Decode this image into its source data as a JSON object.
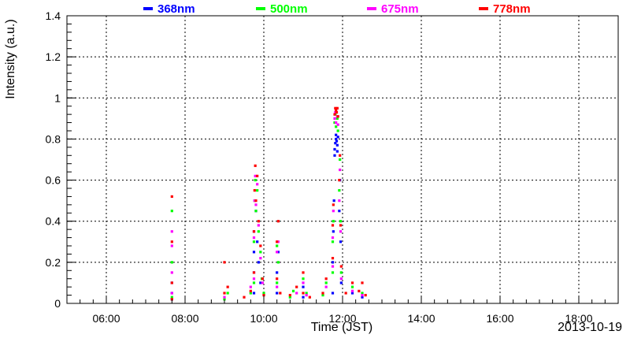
{
  "chart_data": {
    "type": "scatter",
    "title": "",
    "xlabel": "Time (JST)",
    "ylabel": "Intensity (a.u.)",
    "date_label": "2013-10-19",
    "xlim": [
      "05:00",
      "19:00"
    ],
    "ylim": [
      0,
      1.4
    ],
    "x_ticks": [
      "06:00",
      "08:00",
      "10:00",
      "12:00",
      "14:00",
      "16:00",
      "18:00"
    ],
    "y_ticks": [
      "0",
      "0.2",
      "0.4",
      "0.6",
      "0.8",
      "1",
      "1.2",
      "1.4"
    ],
    "grid": true,
    "legend_position": "top",
    "series": [
      {
        "name": "368nm",
        "color": "#0000ff",
        "points": [
          [
            "07:40",
            0.02
          ],
          [
            "07:40",
            0.05
          ],
          [
            "07:40",
            0.1
          ],
          [
            "09:45",
            0.05
          ],
          [
            "09:45",
            0.15
          ],
          [
            "09:45",
            0.25
          ],
          [
            "09:45",
            0.35
          ],
          [
            "09:48",
            0.45
          ],
          [
            "09:50",
            0.3
          ],
          [
            "09:52",
            0.2
          ],
          [
            "09:55",
            0.1
          ],
          [
            "10:20",
            0.05
          ],
          [
            "10:20",
            0.15
          ],
          [
            "10:22",
            0.25
          ],
          [
            "11:00",
            0.03
          ],
          [
            "11:00",
            0.08
          ],
          [
            "11:45",
            0.05
          ],
          [
            "11:45",
            0.2
          ],
          [
            "11:46",
            0.35
          ],
          [
            "11:47",
            0.5
          ],
          [
            "11:48",
            0.72
          ],
          [
            "11:48",
            0.75
          ],
          [
            "11:49",
            0.78
          ],
          [
            "11:50",
            0.8
          ],
          [
            "11:50",
            0.82
          ],
          [
            "11:51",
            0.79
          ],
          [
            "11:52",
            0.77
          ],
          [
            "11:52",
            0.74
          ],
          [
            "11:53",
            0.81
          ],
          [
            "11:55",
            0.45
          ],
          [
            "11:56",
            0.6
          ],
          [
            "11:57",
            0.3
          ],
          [
            "11:58",
            0.1
          ],
          [
            "12:15",
            0.05
          ],
          [
            "12:30",
            0.03
          ]
        ]
      },
      {
        "name": "500nm",
        "color": "#00ff00",
        "points": [
          [
            "07:40",
            0.03
          ],
          [
            "07:40",
            0.2
          ],
          [
            "07:40",
            0.45
          ],
          [
            "09:00",
            0.02
          ],
          [
            "09:05",
            0.05
          ],
          [
            "09:40",
            0.05
          ],
          [
            "09:45",
            0.1
          ],
          [
            "09:45",
            0.3
          ],
          [
            "09:46",
            0.5
          ],
          [
            "09:47",
            0.6
          ],
          [
            "09:48",
            0.45
          ],
          [
            "09:50",
            0.55
          ],
          [
            "09:52",
            0.35
          ],
          [
            "09:55",
            0.25
          ],
          [
            "09:57",
            0.12
          ],
          [
            "10:00",
            0.05
          ],
          [
            "10:20",
            0.1
          ],
          [
            "10:20",
            0.28
          ],
          [
            "10:22",
            0.2
          ],
          [
            "10:40",
            0.03
          ],
          [
            "10:45",
            0.06
          ],
          [
            "11:00",
            0.12
          ],
          [
            "11:05",
            0.05
          ],
          [
            "11:30",
            0.04
          ],
          [
            "11:35",
            0.1
          ],
          [
            "11:45",
            0.15
          ],
          [
            "11:45",
            0.3
          ],
          [
            "11:46",
            0.4
          ],
          [
            "11:48",
            0.88
          ],
          [
            "11:49",
            0.92
          ],
          [
            "11:50",
            0.86
          ],
          [
            "11:52",
            0.9
          ],
          [
            "11:53",
            0.84
          ],
          [
            "11:55",
            0.55
          ],
          [
            "11:56",
            0.7
          ],
          [
            "11:57",
            0.4
          ],
          [
            "11:58",
            0.15
          ],
          [
            "12:15",
            0.08
          ],
          [
            "12:30",
            0.05
          ]
        ]
      },
      {
        "name": "675nm",
        "color": "#ff00ff",
        "points": [
          [
            "07:40",
            0.05
          ],
          [
            "07:40",
            0.15
          ],
          [
            "07:40",
            0.28
          ],
          [
            "07:40",
            0.35
          ],
          [
            "09:00",
            0.03
          ],
          [
            "09:40",
            0.08
          ],
          [
            "09:45",
            0.12
          ],
          [
            "09:45",
            0.32
          ],
          [
            "09:46",
            0.5
          ],
          [
            "09:47",
            0.62
          ],
          [
            "09:48",
            0.48
          ],
          [
            "09:50",
            0.58
          ],
          [
            "09:52",
            0.38
          ],
          [
            "09:55",
            0.22
          ],
          [
            "09:58",
            0.1
          ],
          [
            "10:20",
            0.08
          ],
          [
            "10:20",
            0.25
          ],
          [
            "10:22",
            0.3
          ],
          [
            "10:50",
            0.05
          ],
          [
            "11:00",
            0.1
          ],
          [
            "11:05",
            0.04
          ],
          [
            "11:35",
            0.08
          ],
          [
            "11:45",
            0.18
          ],
          [
            "11:45",
            0.32
          ],
          [
            "11:46",
            0.45
          ],
          [
            "11:48",
            0.9
          ],
          [
            "11:49",
            0.93
          ],
          [
            "11:50",
            0.88
          ],
          [
            "11:52",
            0.91
          ],
          [
            "11:53",
            0.87
          ],
          [
            "11:55",
            0.5
          ],
          [
            "11:56",
            0.65
          ],
          [
            "11:57",
            0.35
          ],
          [
            "11:58",
            0.12
          ],
          [
            "12:15",
            0.06
          ],
          [
            "12:30",
            0.04
          ]
        ]
      },
      {
        "name": "778nm",
        "color": "#ff0000",
        "points": [
          [
            "07:40",
            0.02
          ],
          [
            "07:40",
            0.1
          ],
          [
            "07:40",
            0.3
          ],
          [
            "07:40",
            0.52
          ],
          [
            "09:00",
            0.05
          ],
          [
            "09:00",
            0.2
          ],
          [
            "09:05",
            0.08
          ],
          [
            "09:30",
            0.03
          ],
          [
            "09:40",
            0.06
          ],
          [
            "09:45",
            0.15
          ],
          [
            "09:45",
            0.35
          ],
          [
            "09:46",
            0.55
          ],
          [
            "09:47",
            0.67
          ],
          [
            "09:48",
            0.5
          ],
          [
            "09:50",
            0.62
          ],
          [
            "09:52",
            0.4
          ],
          [
            "09:55",
            0.28
          ],
          [
            "09:58",
            0.12
          ],
          [
            "10:00",
            0.04
          ],
          [
            "10:20",
            0.12
          ],
          [
            "10:20",
            0.3
          ],
          [
            "10:22",
            0.4
          ],
          [
            "10:25",
            0.05
          ],
          [
            "10:40",
            0.04
          ],
          [
            "10:50",
            0.08
          ],
          [
            "11:00",
            0.15
          ],
          [
            "11:00",
            0.05
          ],
          [
            "11:10",
            0.03
          ],
          [
            "11:30",
            0.05
          ],
          [
            "11:35",
            0.12
          ],
          [
            "11:45",
            0.22
          ],
          [
            "11:45",
            0.38
          ],
          [
            "11:46",
            0.48
          ],
          [
            "11:48",
            0.92
          ],
          [
            "11:49",
            0.95
          ],
          [
            "11:50",
            0.94
          ],
          [
            "11:51",
            0.93
          ],
          [
            "11:52",
            0.95
          ],
          [
            "11:53",
            0.91
          ],
          [
            "11:55",
            0.6
          ],
          [
            "11:56",
            0.72
          ],
          [
            "11:57",
            0.38
          ],
          [
            "11:58",
            0.18
          ],
          [
            "12:05",
            0.05
          ],
          [
            "12:15",
            0.1
          ],
          [
            "12:25",
            0.06
          ],
          [
            "12:30",
            0.1
          ],
          [
            "12:35",
            0.04
          ]
        ]
      }
    ]
  }
}
